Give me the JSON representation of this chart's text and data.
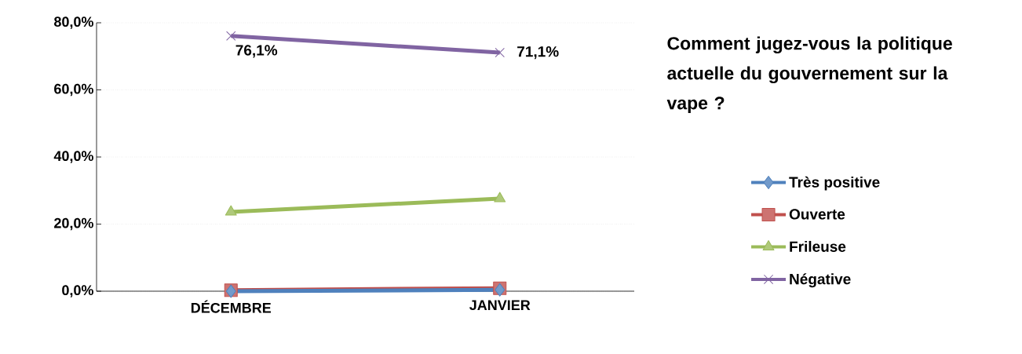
{
  "chart_data": {
    "type": "line",
    "title": "Comment jugez-vous la politique actuelle du gouvernement sur la vape ?",
    "categories": [
      "DÉCEMBRE",
      "JANVIER"
    ],
    "series": [
      {
        "name": "Très positive",
        "color": "#4f81bd",
        "marker": "diamond",
        "values": [
          0,
          0.4
        ]
      },
      {
        "name": "Ouverte",
        "color": "#c0504d",
        "marker": "square",
        "values": [
          0.3,
          0.9
        ]
      },
      {
        "name": "Frileuse",
        "color": "#9bbb59",
        "marker": "triangle",
        "values": [
          23.6,
          27.6
        ]
      },
      {
        "name": "Négative",
        "color": "#8064a2",
        "marker": "cross",
        "values": [
          76.1,
          71.1
        ],
        "value_labels": [
          "76,1%",
          "71,1%"
        ]
      }
    ],
    "ylim": [
      0,
      80
    ],
    "yticks": [
      {
        "value": 0,
        "label": "0,0%"
      },
      {
        "value": 20,
        "label": "20,0%"
      },
      {
        "value": 40,
        "label": "40,0%"
      },
      {
        "value": 60,
        "label": "60,0%"
      },
      {
        "value": 80,
        "label": "80,0%"
      }
    ],
    "grid": "y",
    "legend": "right",
    "line_style": "solid"
  }
}
